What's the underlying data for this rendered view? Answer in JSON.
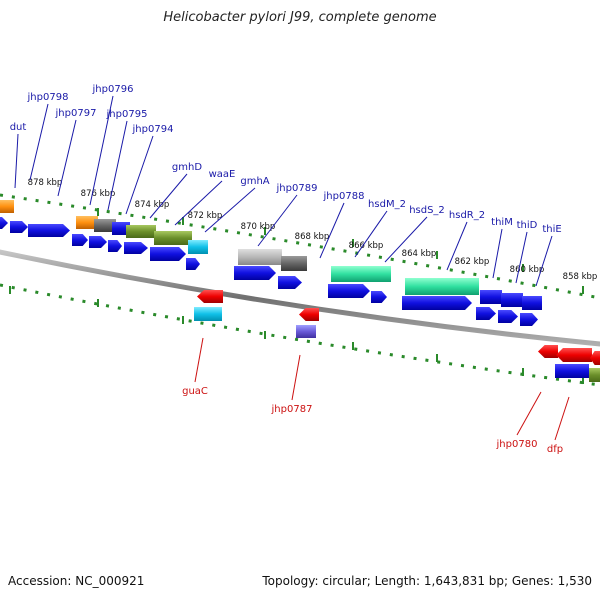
{
  "title": "Helicobacter pylori J99, complete genome",
  "footer": {
    "accession": "Accession: NC_000921",
    "summary": "Topology: circular; Length: 1,643,831 bp; Genes: 1,530"
  },
  "colors": {
    "forward_gene_label": "#1a1aa8",
    "reverse_gene_label": "#cc1111",
    "tick": "#2a8a2a",
    "backbone": "#777777"
  },
  "kbp_ticks": [
    {
      "label": "878 kbp"
    },
    {
      "label": "876 kbp"
    },
    {
      "label": "874 kbp"
    },
    {
      "label": "872 kbp"
    },
    {
      "label": "870 kbp"
    },
    {
      "label": "868 kbp"
    },
    {
      "label": "866 kbp"
    },
    {
      "label": "864 kbp"
    },
    {
      "label": "862 kbp"
    },
    {
      "label": "860 kbp"
    },
    {
      "label": "858 kbp"
    }
  ],
  "forward_labels": [
    {
      "name": "dut"
    },
    {
      "name": "jhp0798"
    },
    {
      "name": "jhp0797"
    },
    {
      "name": "jhp0796"
    },
    {
      "name": "jhp0795"
    },
    {
      "name": "jhp0794"
    },
    {
      "name": "gmhD"
    },
    {
      "name": "waaE"
    },
    {
      "name": "gmhA"
    },
    {
      "name": "jhp0789"
    },
    {
      "name": "jhp0788"
    },
    {
      "name": "hsdM_2"
    },
    {
      "name": "hsdS_2"
    },
    {
      "name": "hsdR_2"
    },
    {
      "name": "thiM"
    },
    {
      "name": "thiD"
    },
    {
      "name": "thiE"
    }
  ],
  "reverse_labels": [
    {
      "name": "guaC"
    },
    {
      "name": "jhp0787"
    },
    {
      "name": "jhp0780"
    },
    {
      "name": "dfp"
    }
  ]
}
